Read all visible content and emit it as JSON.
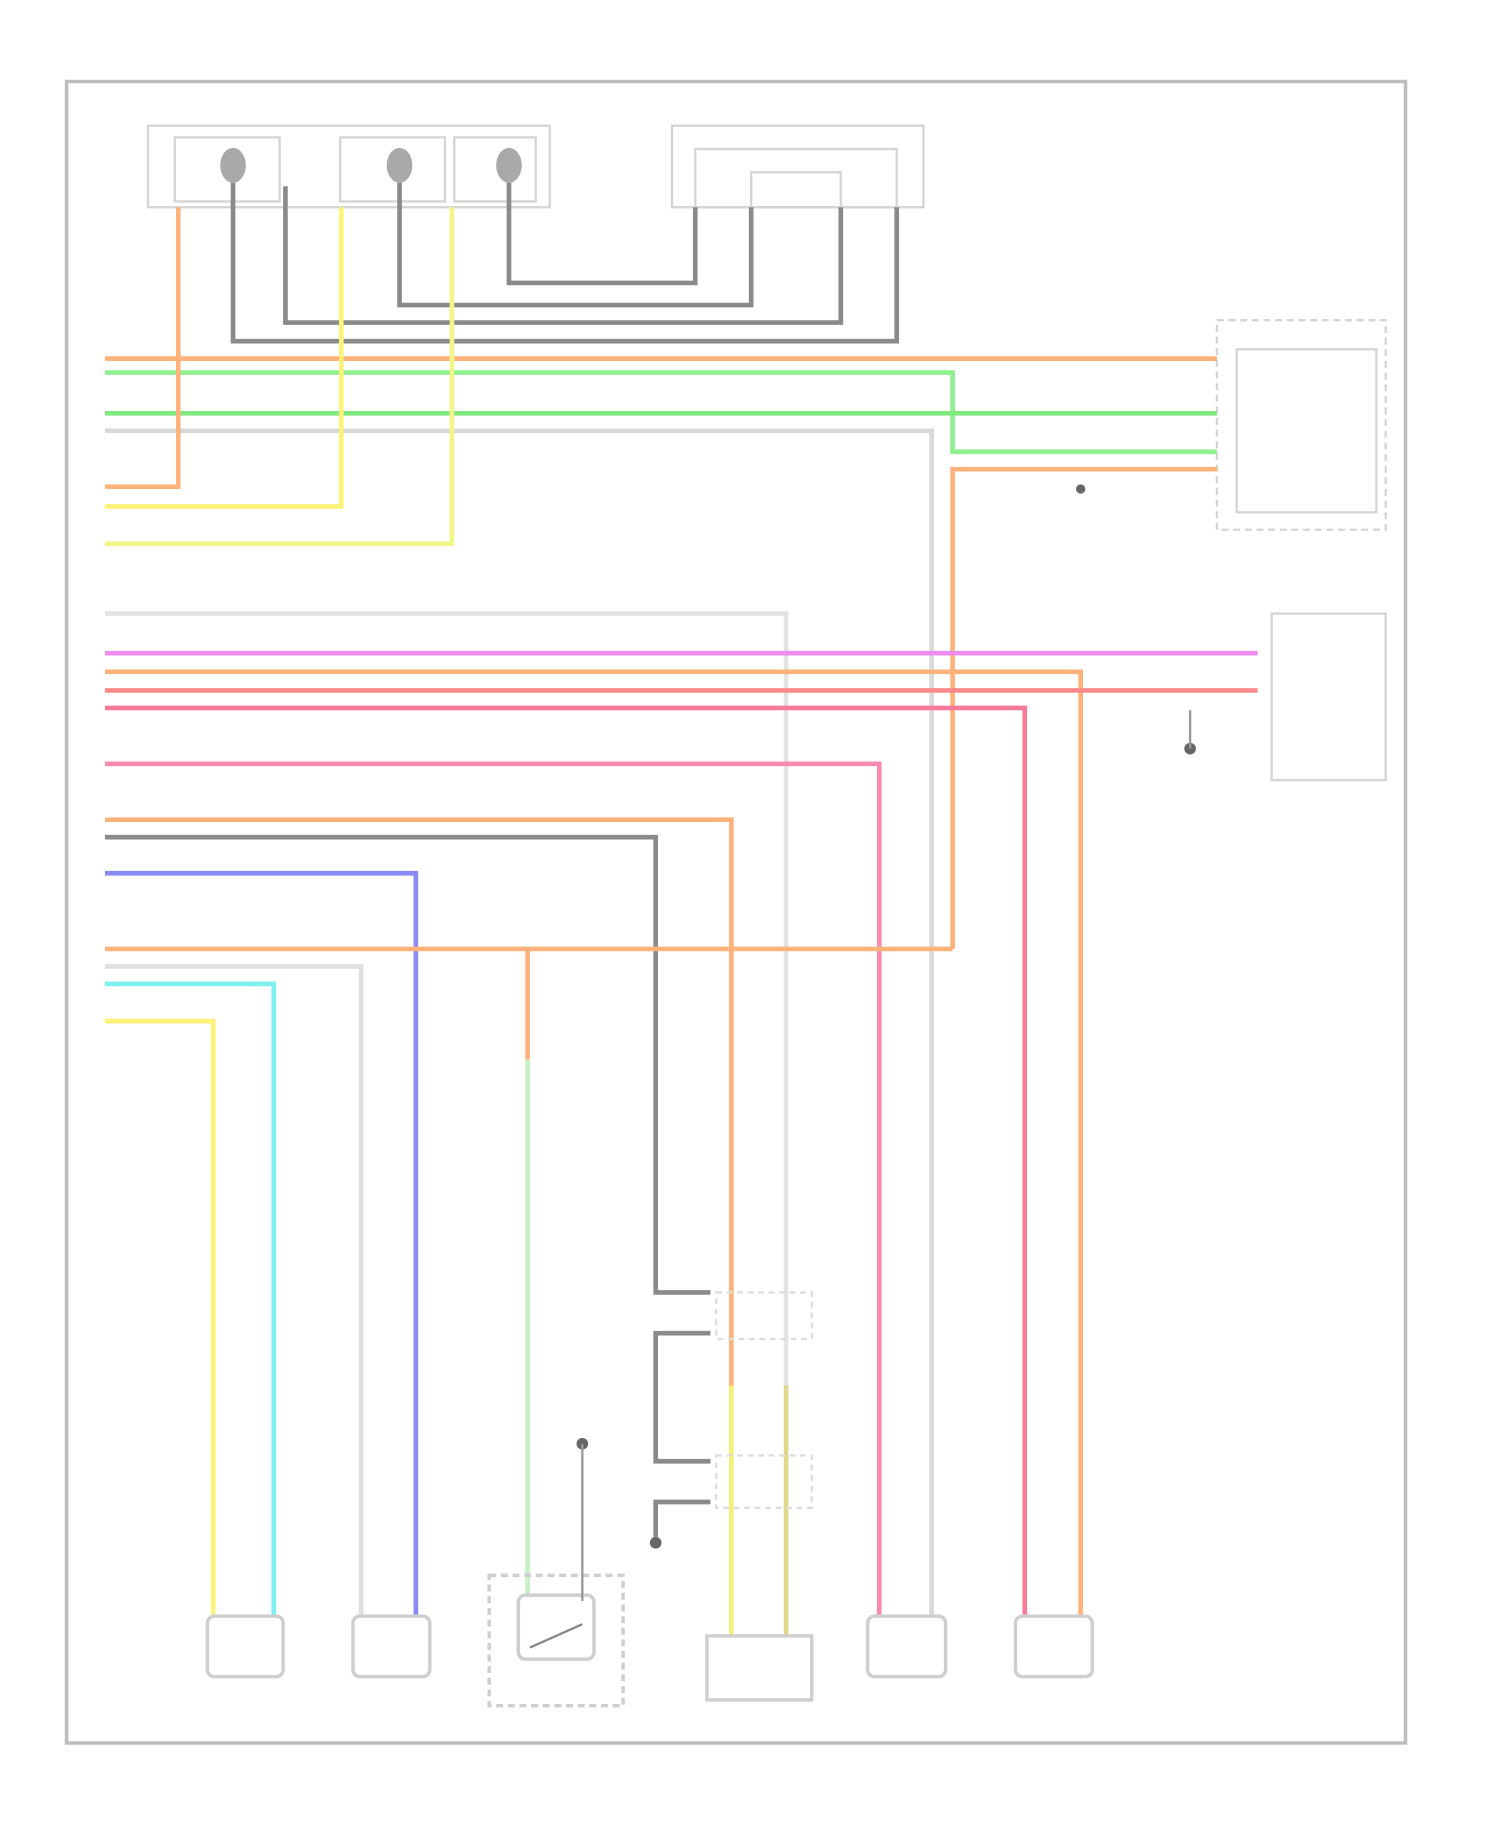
{
  "diagram": {
    "colors": {
      "frame": "#bdbdbd",
      "component_outline": "#cfcfcf",
      "shield_wire": "#8a8a8a"
    },
    "wires": [
      {
        "id": "orange-top",
        "color": "#ffb27a"
      },
      {
        "id": "green-a",
        "color": "#8ef08e"
      },
      {
        "id": "green-b",
        "color": "#7fe87f"
      },
      {
        "id": "gray-a",
        "color": "#d9d9d9"
      },
      {
        "id": "orange-bridge",
        "color": "#ffb27a"
      },
      {
        "id": "orange-up",
        "color": "#ffb27a"
      },
      {
        "id": "yellow-up",
        "color": "#fff27a"
      },
      {
        "id": "lime-up",
        "color": "#f2f58a"
      },
      {
        "id": "gray-b",
        "color": "#e3e3e3"
      },
      {
        "id": "magenta",
        "color": "#f08cf0"
      },
      {
        "id": "orange-c",
        "color": "#ffb27a"
      },
      {
        "id": "red",
        "color": "#ff8a8a"
      },
      {
        "id": "pink-red",
        "color": "#f77a9a"
      },
      {
        "id": "pink",
        "color": "#f78ab0"
      },
      {
        "id": "orange-d",
        "color": "#ffb27a"
      },
      {
        "id": "dark-gray",
        "color": "#8a8a8a"
      },
      {
        "id": "blue",
        "color": "#8a8af5"
      },
      {
        "id": "orange-e",
        "color": "#ffb27a"
      },
      {
        "id": "gray-c",
        "color": "#e0e0e0"
      },
      {
        "id": "cyan",
        "color": "#7ff0f0"
      },
      {
        "id": "yellow",
        "color": "#fff27a"
      },
      {
        "id": "light-green",
        "color": "#c8f0c8"
      },
      {
        "id": "yellow-bottom",
        "color": "#f5f07a"
      },
      {
        "id": "olive-bottom",
        "color": "#e0d88a"
      }
    ]
  }
}
